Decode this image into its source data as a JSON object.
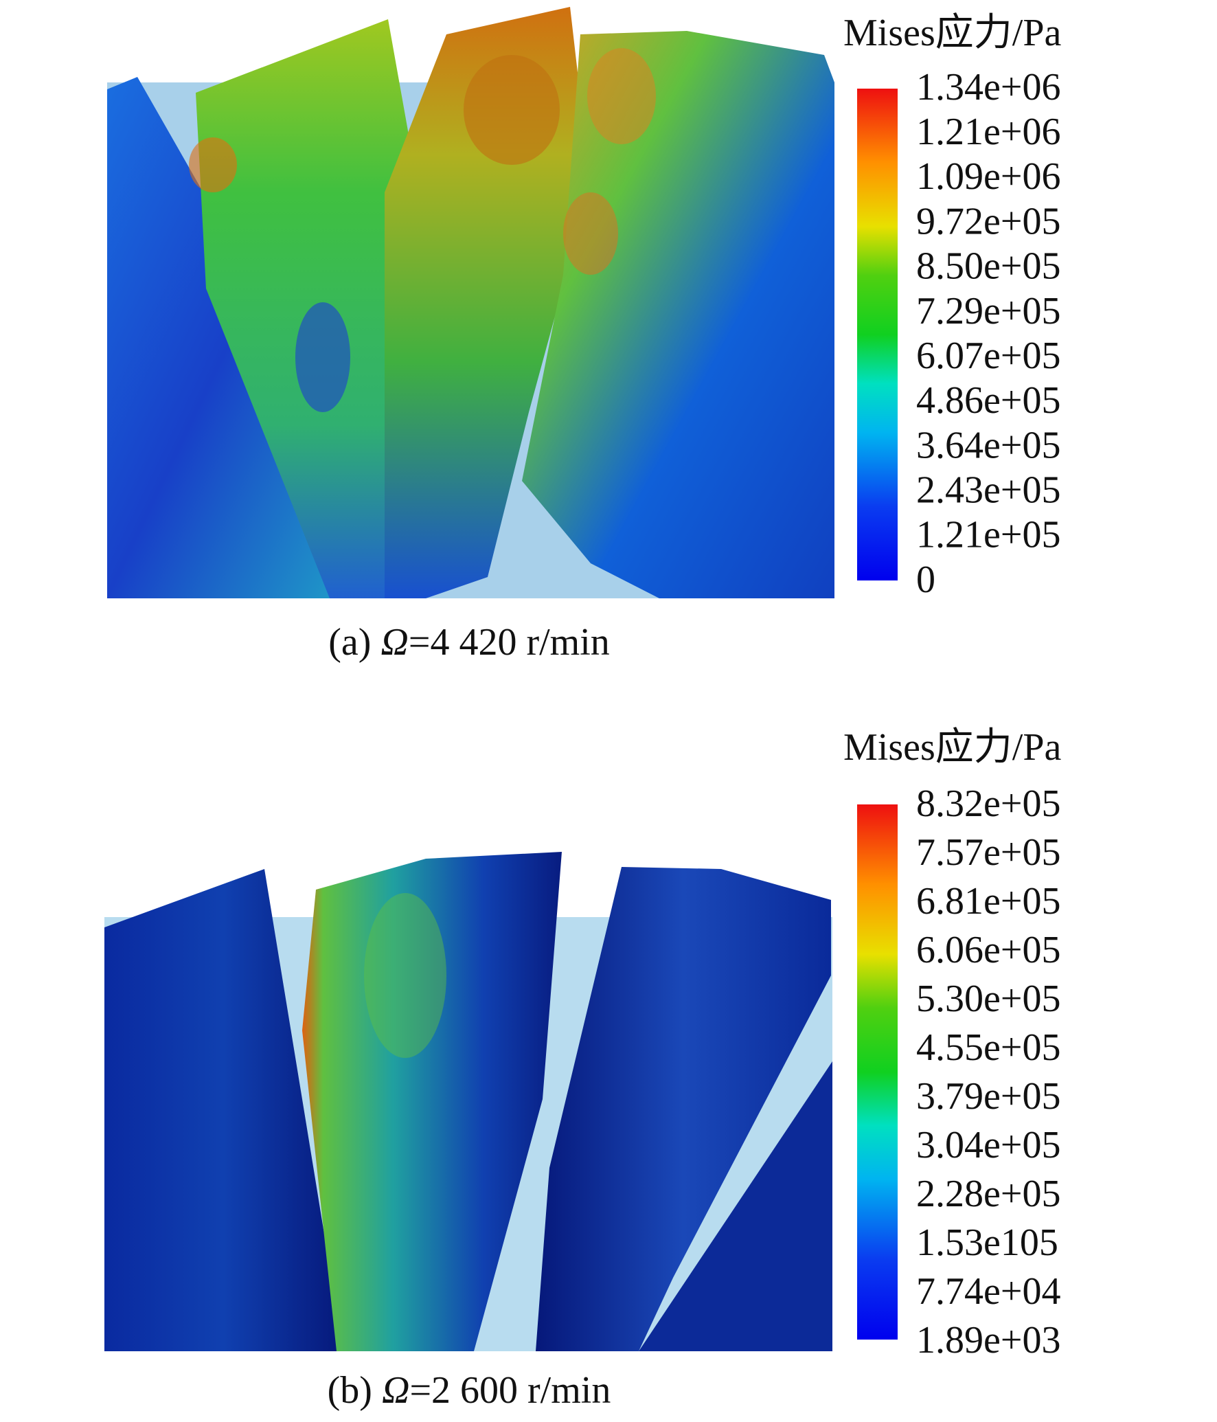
{
  "panels": [
    {
      "legend_title": "Mises应力/Pa",
      "legend_labels": [
        "1.34e+06",
        "1.21e+06",
        "1.09e+06",
        "9.72e+05",
        "8.50e+05",
        "7.29e+05",
        "6.07e+05",
        "4.86e+05",
        "3.64e+05",
        "2.43e+05",
        "1.21e+05",
        "0"
      ],
      "caption": {
        "prefix": "(a) ",
        "symbol": "Ω",
        "text": "=4 420 r/min"
      }
    },
    {
      "legend_title": "Mises应力/Pa",
      "legend_labels": [
        "8.32e+05",
        "7.57e+05",
        "6.81e+05",
        "6.06e+05",
        "5.30e+05",
        "4.55e+05",
        "3.79e+05",
        "3.04e+05",
        "2.28e+05",
        "1.53e105",
        "7.74e+04",
        "1.89e+03"
      ],
      "caption": {
        "prefix": "(b) ",
        "symbol": "Ω",
        "text": "=2 600 r/min"
      }
    }
  ]
}
